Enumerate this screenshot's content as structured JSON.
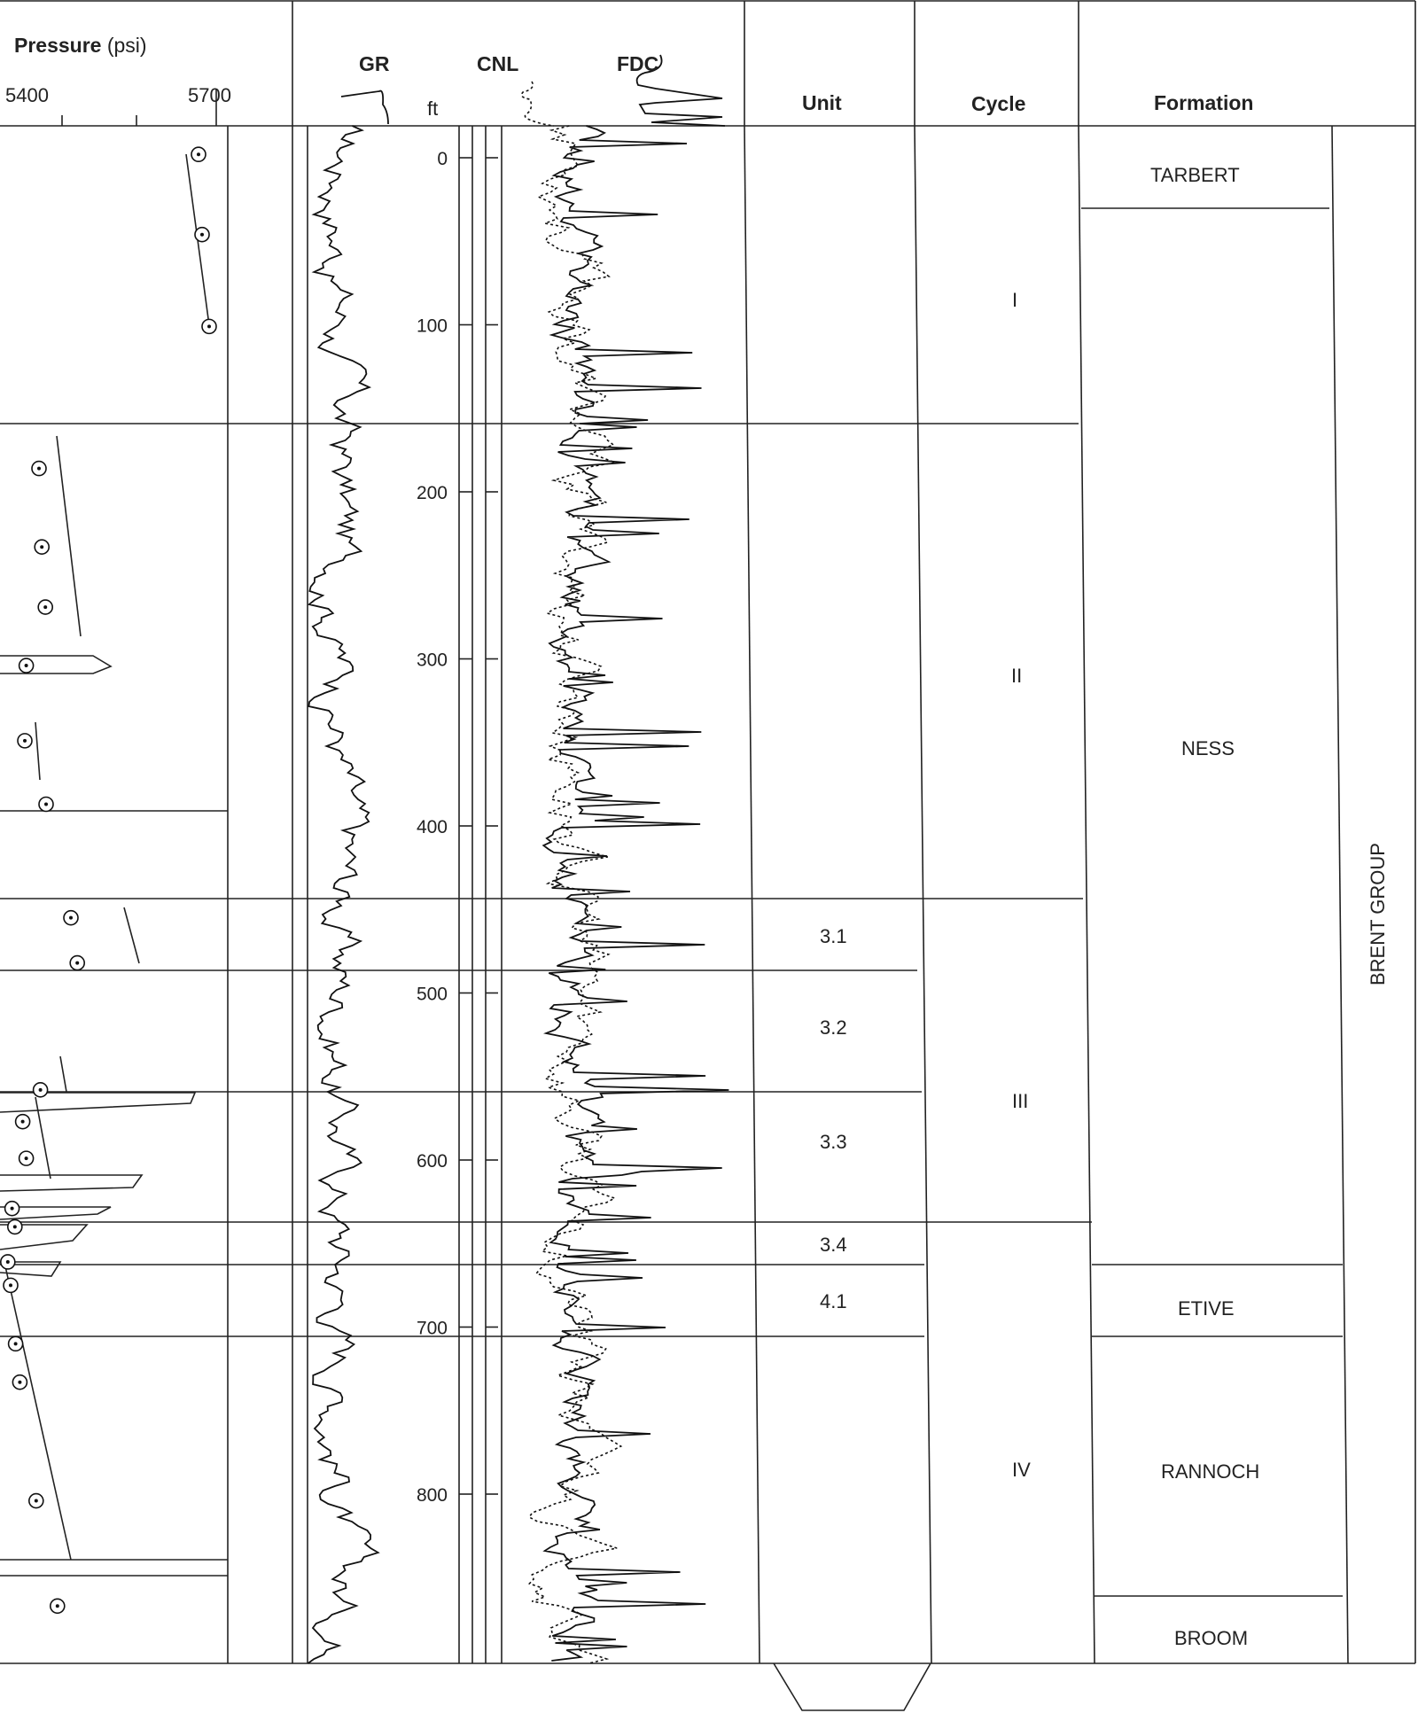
{
  "headers": {
    "pressure_bold": "Pressure",
    "pressure_unit": "(psi)",
    "pressure_min": "5400",
    "pressure_max": "5700",
    "gr": "GR",
    "cnl": "CNL",
    "fdc": "FDC",
    "depth_unit": "ft",
    "unit": "Unit",
    "cycle": "Cycle",
    "formation": "Formation"
  },
  "depth_ticks": [
    "0",
    "100",
    "200",
    "300",
    "400",
    "500",
    "600",
    "700",
    "800"
  ],
  "units": [
    "3.1",
    "3.2",
    "3.3",
    "3.4",
    "4.1"
  ],
  "cycles": [
    "I",
    "II",
    "III",
    "IV"
  ],
  "formations": [
    "TARBERT",
    "NESS",
    "ETIVE",
    "RANNOCH",
    "BROOM"
  ],
  "group": "BRENT GROUP",
  "chart_data": {
    "type": "line",
    "depth_axis": {
      "label": "ft",
      "range": [
        -20,
        900
      ],
      "ticks": [
        0,
        100,
        200,
        300,
        400,
        500,
        600,
        700,
        800
      ]
    },
    "pressure_axis": {
      "label": "Pressure (psi)",
      "range": [
        5400,
        5700
      ]
    },
    "series": [
      {
        "name": "GR"
      },
      {
        "name": "CNL"
      },
      {
        "name": "FDC"
      }
    ],
    "pressure_points": [
      {
        "depth": -2,
        "psi": 5675
      },
      {
        "depth": 46,
        "psi": 5680
      },
      {
        "depth": 101,
        "psi": 5690
      },
      {
        "depth": 186,
        "psi": 5450
      },
      {
        "depth": 233,
        "psi": 5454
      },
      {
        "depth": 269,
        "psi": 5459
      },
      {
        "depth": 304,
        "psi": 5432
      },
      {
        "depth": 349,
        "psi": 5430
      },
      {
        "depth": 387,
        "psi": 5460
      },
      {
        "depth": 455,
        "psi": 5495
      },
      {
        "depth": 482,
        "psi": 5504
      },
      {
        "depth": 558,
        "psi": 5452
      },
      {
        "depth": 577,
        "psi": 5427
      },
      {
        "depth": 599,
        "psi": 5432
      },
      {
        "depth": 629,
        "psi": 5412
      },
      {
        "depth": 640,
        "psi": 5416
      },
      {
        "depth": 661,
        "psi": 5406
      },
      {
        "depth": 675,
        "psi": 5410
      },
      {
        "depth": 710,
        "psi": 5417
      },
      {
        "depth": 733,
        "psi": 5423
      },
      {
        "depth": 804,
        "psi": 5446
      },
      {
        "depth": 867,
        "psi": 5476
      }
    ],
    "unit_boundaries": [
      {
        "name": "3.1",
        "top": 445,
        "base": 487
      },
      {
        "name": "3.2",
        "top": 487,
        "base": 560
      },
      {
        "name": "3.3",
        "top": 560,
        "base": 638
      },
      {
        "name": "3.4",
        "top": 638,
        "base": 664
      },
      {
        "name": "4.1",
        "top": 664,
        "base": 705
      }
    ],
    "cycle_boundaries": [
      {
        "name": "I",
        "top": -20,
        "base": 158
      },
      {
        "name": "II",
        "top": 158,
        "base": 445
      },
      {
        "name": "III",
        "top": 445,
        "base": 638
      },
      {
        "name": "IV",
        "top": 638,
        "base": 900
      }
    ],
    "formation_boundaries": [
      {
        "name": "TARBERT",
        "top": -20,
        "base": 30
      },
      {
        "name": "NESS",
        "top": 30,
        "base": 664
      },
      {
        "name": "ETIVE",
        "top": 664,
        "base": 705
      },
      {
        "name": "RANNOCH",
        "top": 705,
        "base": 863
      },
      {
        "name": "BROOM",
        "top": 863,
        "base": 900
      }
    ]
  }
}
